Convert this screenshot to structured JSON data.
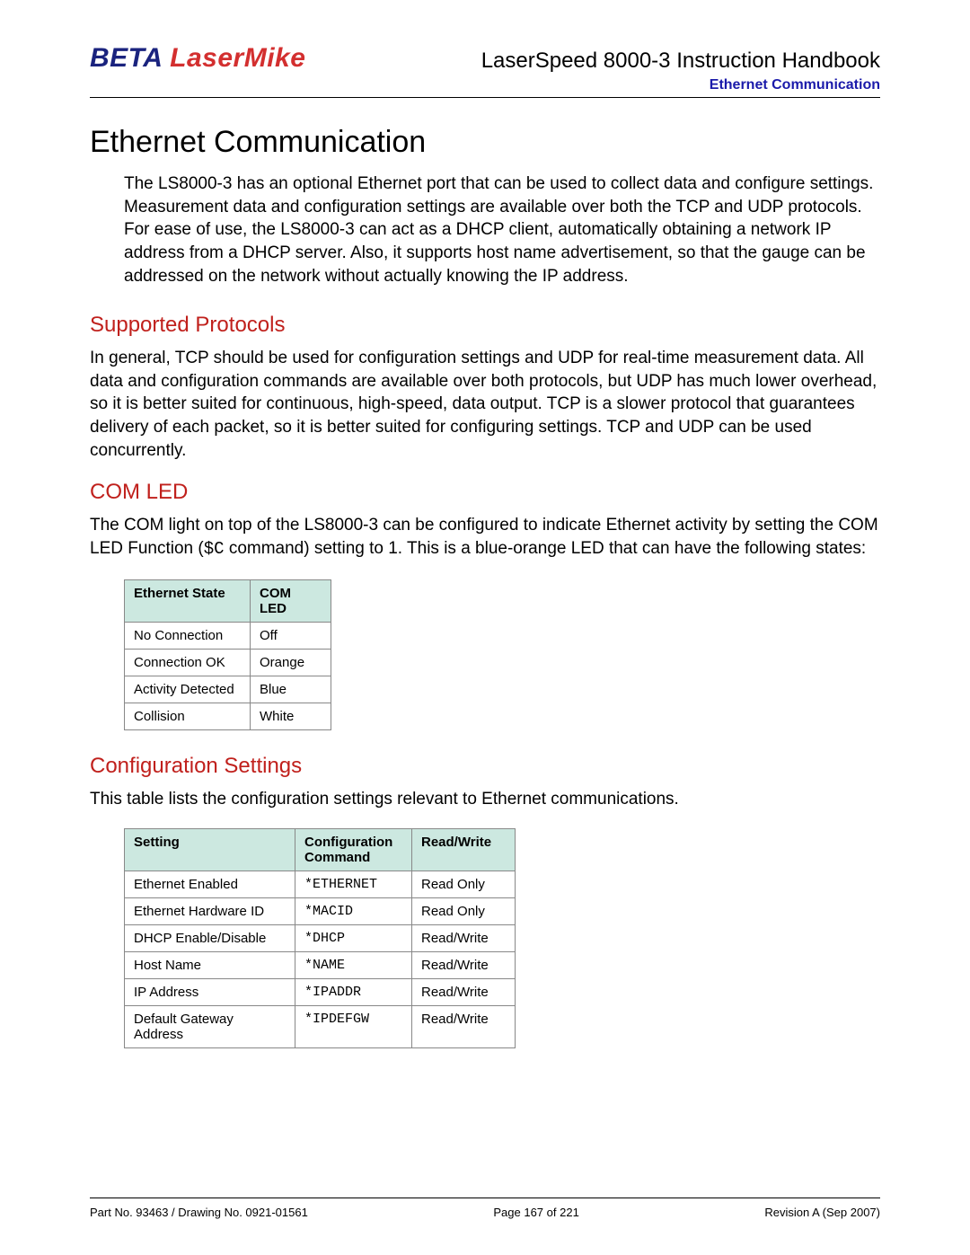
{
  "header": {
    "logo_beta": "BETA",
    "logo_lasermike": "LaserMike",
    "doc_title": "LaserSpeed 8000-3 Instruction Handbook",
    "section_label": "Ethernet Communication"
  },
  "chapter": {
    "title": "Ethernet Communication",
    "intro": "The LS8000-3 has an optional Ethernet port that can be used to collect data and configure settings.  Measurement data and configuration settings are available over both the TCP and UDP protocols.  For ease of use, the LS8000-3 can act as a DHCP client, automatically obtaining a network IP address from a DHCP server.  Also, it supports host name advertisement, so that the gauge can be addressed on the network without actually knowing the IP address."
  },
  "protocols": {
    "heading": "Supported Protocols",
    "text": "In general, TCP should be used for configuration settings and UDP for real-time measurement data.  All data and configuration commands are available over both protocols, but UDP has much lower overhead, so it is better suited for continuous, high-speed, data output.  TCP is a slower protocol that guarantees delivery of each packet, so it is better suited for configuring settings.  TCP and UDP can be used concurrently."
  },
  "comled": {
    "heading": "COM LED",
    "text_before": "The COM light on top of the LS8000-3 can be configured to indicate Ethernet activity by setting the COM LED Function (",
    "code": "$C",
    "text_after": " command) setting to 1.  This is a blue-orange LED that can have the following states:",
    "table": {
      "columns": [
        "Ethernet State",
        "COM LED"
      ],
      "rows": [
        [
          "No Connection",
          "Off"
        ],
        [
          "Connection OK",
          "Orange"
        ],
        [
          "Activity Detected",
          "Blue"
        ],
        [
          "Collision",
          "White"
        ]
      ]
    }
  },
  "config": {
    "heading": "Configuration Settings",
    "text": "This table lists the configuration settings relevant to Ethernet communications.",
    "table": {
      "columns": [
        "Setting",
        "Configuration Command",
        "Read/Write"
      ],
      "rows": [
        [
          "Ethernet Enabled",
          "*ETHERNET",
          "Read Only"
        ],
        [
          "Ethernet Hardware ID",
          "*MACID",
          "Read Only"
        ],
        [
          "DHCP Enable/Disable",
          "*DHCP",
          "Read/Write"
        ],
        [
          "Host Name",
          "*NAME",
          "Read/Write"
        ],
        [
          "IP Address",
          "*IPADDR",
          "Read/Write"
        ],
        [
          "Default Gateway Address",
          "*IPDEFGW",
          "Read/Write"
        ]
      ]
    }
  },
  "footer": {
    "left": "Part No. 93463 / Drawing No. 0921-01561",
    "center": "Page 167 of 221",
    "right": "Revision A (Sep 2007)"
  }
}
